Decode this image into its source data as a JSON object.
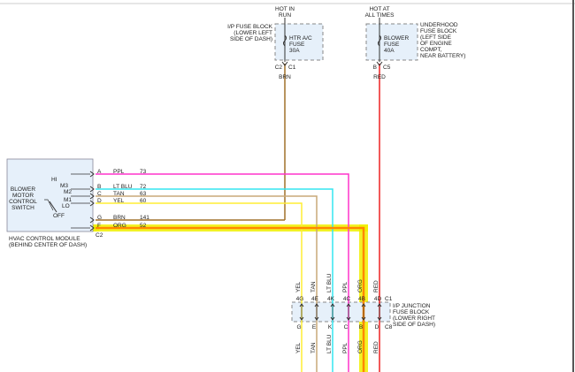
{
  "top_left_fuse": {
    "feed": [
      "HOT IN",
      "RUN"
    ],
    "block_label": [
      "I/P FUSE BLOCK",
      "(LOWER LEFT",
      "SIDE OF DASH)"
    ],
    "fuse_label": [
      "HTR A/C",
      "FUSE",
      "30A"
    ],
    "pins": [
      "C2",
      "C1"
    ],
    "wire_color": "BRN"
  },
  "top_right_fuse": {
    "feed": [
      "HOT AT",
      "ALL TIMES"
    ],
    "block_label": [
      "UNDERHOOD",
      "FUSE BLOCK",
      "(LEFT SIDE",
      "OF ENGINE",
      "COMPT,",
      "NEAR BATTERY)"
    ],
    "fuse_label": [
      "BLOWER",
      "FUSE",
      "40A"
    ],
    "pins": [
      "B",
      "C5"
    ],
    "wire_color": "RED"
  },
  "module": {
    "switch_label": [
      "BLOWER",
      "MOTOR",
      "CONTROL",
      "SWITCH"
    ],
    "positions": [
      "HI",
      "M3",
      "M2",
      "M1",
      "LO",
      "OFF"
    ],
    "title": [
      "HVAC CONTROL MODULE",
      "(BEHIND CENTER OF DASH)"
    ],
    "connector": "C2"
  },
  "module_wires": [
    {
      "pin": "A",
      "color": "PPL",
      "circuit": "73",
      "hex": "#ff33cc"
    },
    {
      "pin": "B",
      "color": "LT BLU",
      "circuit": "72",
      "hex": "#33e5f0"
    },
    {
      "pin": "C",
      "color": "TAN",
      "circuit": "63",
      "hex": "#c8a878"
    },
    {
      "pin": "D",
      "color": "YEL",
      "circuit": "60",
      "hex": "#ffee33"
    },
    {
      "pin": "G",
      "color": "BRN",
      "circuit": "141",
      "hex": "#a0702a"
    },
    {
      "pin": "F",
      "color": "ORG",
      "circuit": "52",
      "hex": "#ff8800"
    }
  ],
  "junction_block": {
    "label": [
      "I/P JUNCTION",
      "FUSE BLOCK",
      "(LOWER RIGHT",
      "SIDE OF DASH)"
    ],
    "top_connector": "C1",
    "bottom_connector": "C8",
    "columns": [
      {
        "wire": "YEL",
        "top_pin": "4G",
        "bottom_pin": "G",
        "hex": "#ffee33"
      },
      {
        "wire": "TAN",
        "top_pin": "4E",
        "bottom_pin": "E",
        "hex": "#c8a878"
      },
      {
        "wire": "LT BLU",
        "top_pin": "4K",
        "bottom_pin": "K",
        "hex": "#33e5f0"
      },
      {
        "wire": "PPL",
        "top_pin": "4C",
        "bottom_pin": "C",
        "hex": "#ff33cc"
      },
      {
        "wire": "ORG",
        "top_pin": "4B",
        "bottom_pin": "B",
        "hex": "#ff8800"
      },
      {
        "wire": "RED",
        "top_pin": "4D",
        "bottom_pin": "D",
        "hex": "#ee2222"
      }
    ]
  },
  "colors": {
    "highlight": "#f0f000",
    "box_fill": "#e6f0fa",
    "brn": "#a0702a",
    "red": "#ee2222"
  }
}
